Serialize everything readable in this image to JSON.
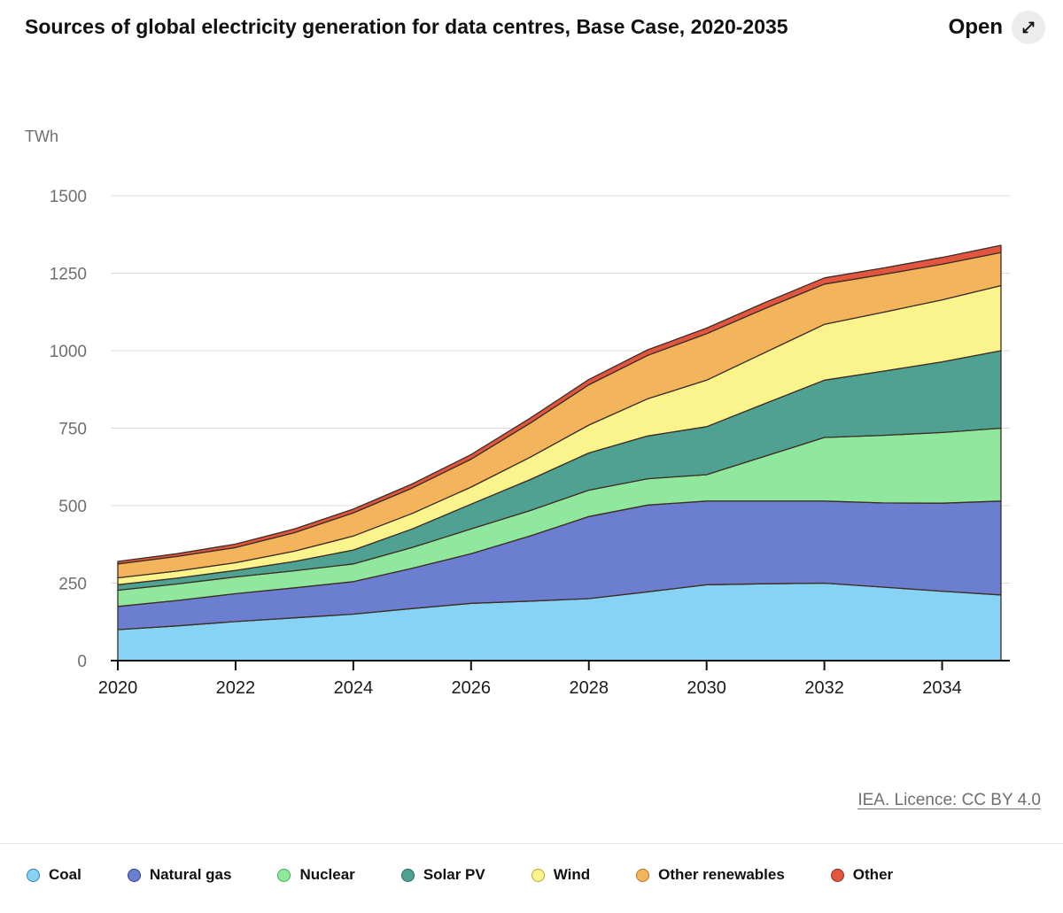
{
  "header": {
    "title": "Sources of global electricity generation for data centres, Base Case, 2020-2035",
    "open_label": "Open",
    "open_icon": "expand-diagonal-arrow"
  },
  "chart_data": {
    "type": "area",
    "stacked": true,
    "title": "Sources of global electricity generation for data centres, Base Case, 2020-2035",
    "unit_label": "TWh",
    "xlabel": "",
    "ylabel": "TWh",
    "xlim": [
      2020,
      2035
    ],
    "ylim": [
      0,
      1500
    ],
    "grid": true,
    "legend_position": "bottom",
    "outline_color": "#3c2e24",
    "gridline_color": "#dcdcdc",
    "axis_color": "#111111",
    "y_ticks": [
      0,
      250,
      500,
      750,
      1000,
      1250,
      1500
    ],
    "x_ticks": [
      2020,
      2022,
      2024,
      2026,
      2028,
      2030,
      2032,
      2034
    ],
    "x": [
      2020,
      2021,
      2022,
      2023,
      2024,
      2025,
      2026,
      2027,
      2028,
      2029,
      2030,
      2031,
      2032,
      2033,
      2034,
      2035
    ],
    "series": [
      {
        "name": "Coal",
        "color": "#87d3f6",
        "border": "#357fa8",
        "values": [
          100,
          112,
          126,
          138,
          150,
          168,
          185,
          192,
          200,
          222,
          245,
          248,
          250,
          237,
          224,
          212
        ]
      },
      {
        "name": "Natural gas",
        "color": "#6b7ecf",
        "border": "#2f3e99",
        "values": [
          75,
          82,
          90,
          97,
          105,
          130,
          160,
          210,
          265,
          280,
          270,
          267,
          265,
          272,
          284,
          303
        ]
      },
      {
        "name": "Nuclear",
        "color": "#90e79e",
        "border": "#3fae57",
        "values": [
          52,
          53,
          54,
          55,
          57,
          67,
          80,
          82,
          85,
          85,
          85,
          145,
          205,
          218,
          228,
          235
        ]
      },
      {
        "name": "Solar PV",
        "color": "#4fa191",
        "border": "#27695d",
        "values": [
          18,
          19,
          21,
          30,
          45,
          60,
          80,
          100,
          120,
          138,
          155,
          170,
          185,
          207,
          228,
          250
        ]
      },
      {
        "name": "Wind",
        "color": "#fbf48d",
        "border": "#b5a832",
        "values": [
          22,
          23,
          25,
          33,
          45,
          50,
          55,
          72,
          90,
          120,
          150,
          165,
          180,
          190,
          200,
          210
        ]
      },
      {
        "name": "Other renewables",
        "color": "#f3b45b",
        "border": "#b07427",
        "values": [
          45,
          47,
          49,
          60,
          75,
          82,
          90,
          110,
          130,
          140,
          150,
          142,
          130,
          122,
          115,
          107
        ]
      },
      {
        "name": "Other",
        "color": "#e2553f",
        "border": "#8e2f1f",
        "values": [
          8,
          9,
          11,
          12,
          12,
          13,
          15,
          16,
          17,
          18,
          18,
          19,
          20,
          21,
          22,
          23
        ]
      }
    ]
  },
  "footer": {
    "licence": "IEA. Licence: CC BY 4.0"
  }
}
